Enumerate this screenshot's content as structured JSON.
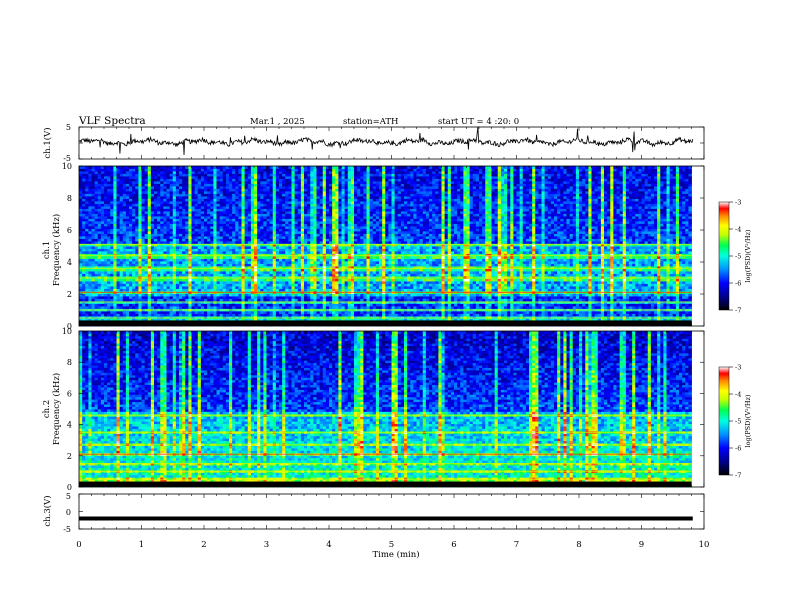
{
  "header": {
    "title": "VLF  Spectra",
    "date": "Mar.1   , 2025",
    "station": "station=ATH",
    "start_ut": "start  UT  =   4  :20: 0"
  },
  "chart_data": [
    {
      "type": "line",
      "ylabel": "ch.1(V)",
      "ylim": [
        -5,
        5
      ],
      "yticks": [
        "5",
        "-5"
      ],
      "xlim": [
        0,
        10
      ],
      "trace_level": 0.3
    },
    {
      "type": "heatmap",
      "ylabel": "ch.1\nFrequency  (kHz)",
      "ylabel_lines": [
        "ch.1",
        "Frequency  (kHz)"
      ],
      "ylim": [
        0,
        10
      ],
      "yticks": [
        "10",
        "8",
        "6",
        "4",
        "2",
        "0"
      ],
      "xlim": [
        0,
        9.8
      ],
      "colorbar": {
        "label": "log(PSD)(V²/Hz)",
        "ticks": [
          "-3",
          "-4",
          "-5",
          "-6",
          "-7"
        ],
        "range": [
          -7,
          -3
        ]
      },
      "bands_khz": [
        0.5,
        1.0,
        1.5,
        2.1,
        3.0,
        3.6,
        4.4,
        5.1
      ]
    },
    {
      "type": "heatmap",
      "ylabel": "ch.2\nFrequency  (kHz)",
      "ylabel_lines": [
        "ch.2",
        "Frequency  (kHz)"
      ],
      "ylim": [
        0,
        10
      ],
      "yticks": [
        "10",
        "8",
        "6",
        "4",
        "2",
        "0"
      ],
      "xlim": [
        0,
        9.8
      ],
      "colorbar": {
        "label": "log(PSD)(V²/Hz)",
        "ticks": [
          "-3",
          "-4",
          "-5",
          "-6",
          "-7"
        ],
        "range": [
          -7,
          -3
        ]
      },
      "bands_khz": [
        0.5,
        1.0,
        1.5,
        2.1,
        2.7,
        3.5,
        4.6
      ]
    },
    {
      "type": "line",
      "ylabel": "ch.3(V)",
      "ylim": [
        -5,
        5
      ],
      "yticks": [
        "5",
        "0",
        "-5"
      ],
      "xlim": [
        0,
        10
      ],
      "trace_level": -2.0,
      "xlabel": "Time  (min)",
      "xticks": [
        "0",
        "1",
        "2",
        "3",
        "4",
        "5",
        "6",
        "7",
        "8",
        "9",
        "10"
      ]
    }
  ],
  "colors": {
    "ink": "#000000",
    "colormap": [
      "#000000",
      "#00007a",
      "#0000ff",
      "#0096ff",
      "#00ffff",
      "#00ff64",
      "#b4ff00",
      "#ffff00",
      "#ff9600",
      "#ff0000",
      "#ffffff"
    ]
  }
}
